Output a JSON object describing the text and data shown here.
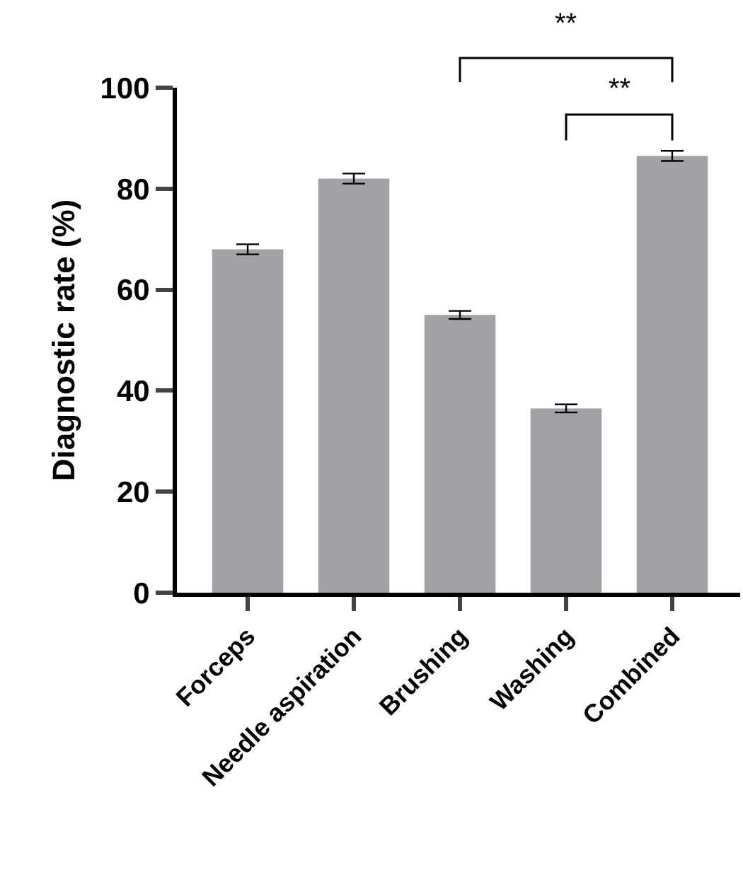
{
  "chart_data": {
    "type": "bar",
    "ylabel": "Diagnostic rate (%)",
    "categories": [
      "Forceps",
      "Needle aspiration",
      "Brushing",
      "Washing",
      "Combined"
    ],
    "values": [
      68,
      82,
      55,
      36.5,
      86.5
    ],
    "errors": [
      1,
      1,
      0.8,
      0.8,
      1
    ],
    "color": "#a2a1a6",
    "ylim": [
      0,
      100
    ],
    "yticks": [
      0,
      20,
      40,
      60,
      80,
      100
    ],
    "grid": false,
    "legend": false,
    "annotations": [
      "**",
      "**"
    ]
  }
}
